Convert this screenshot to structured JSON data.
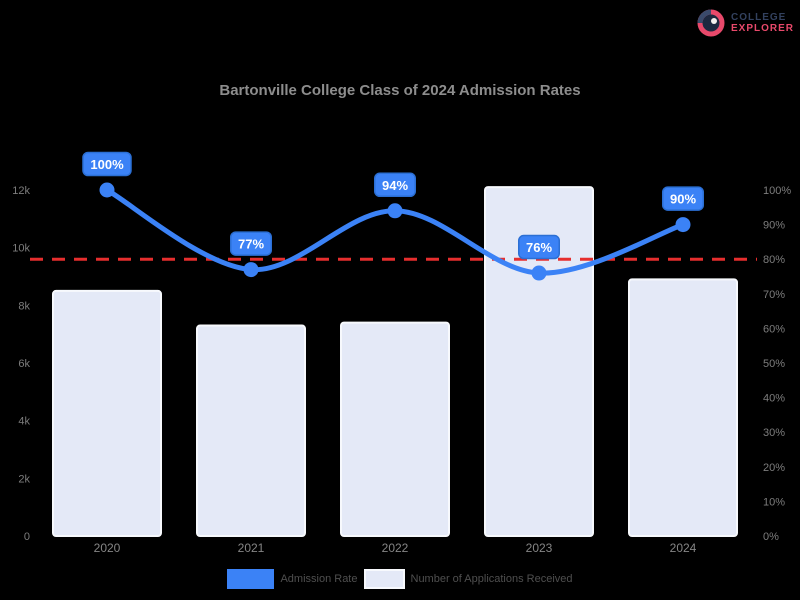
{
  "page": {
    "background": "#000000"
  },
  "logo": {
    "icon": "ring-logo-icon",
    "line1": "COLLEGE",
    "line2": "EXPLORER",
    "line1_color": "#33415e",
    "line2_color": "#e8496b"
  },
  "title": "Bartonville College Class of 2024 Admission Rates",
  "chart_data": {
    "type": "bar+line combo",
    "title": "Bartonville College Class of 2024 Admission Rates",
    "categories": [
      "2020",
      "2021",
      "2022",
      "2023",
      "2024"
    ],
    "series": [
      {
        "name": "Number of Applications Received",
        "type": "bar",
        "axis": "left",
        "values": [
          8500,
          7300,
          7400,
          12100,
          8900
        ],
        "fill": "#e4e9f7",
        "border": "#f7f9fd"
      },
      {
        "name": "Admission Rate",
        "type": "line",
        "axis": "right",
        "values": [
          100,
          77,
          94,
          76,
          90
        ],
        "unit": "%",
        "color": "#3b82f6",
        "point_labels": [
          "100%",
          "77%",
          "94%",
          "76%",
          "90%"
        ]
      }
    ],
    "reference_line": {
      "axis": "right",
      "value": 80,
      "color": "#e62e2e",
      "style": "dashed"
    },
    "left_axis": {
      "min": 0,
      "max": 12000,
      "tick_labels": [
        "12k",
        "10k",
        "8k",
        "6k",
        "4k",
        "2k",
        "0"
      ]
    },
    "right_axis": {
      "min": 0,
      "max": 100,
      "tick_labels": [
        "100%",
        "90%",
        "80%",
        "70%",
        "60%",
        "50%",
        "40%",
        "30%",
        "20%",
        "10%",
        "0%"
      ]
    },
    "grid": false,
    "legend_position": "bottom",
    "legend": [
      {
        "label": "Admission Rate",
        "swatch_color": "#3b82f6"
      },
      {
        "label": "Number of Applications Received",
        "swatch_color": "#e4e9f7"
      }
    ]
  },
  "colors": {
    "accent_blue": "#3b82f6",
    "label_box_border": "#2b6fd4",
    "reference_red": "#e62e2e",
    "bar_fill": "#e4e9f7",
    "bar_border": "#f7f9fd",
    "axis_text": "#7d7d7d",
    "category_text": "#858585",
    "title_text": "#8d8d8d",
    "legend_text": "#4f4f4f"
  }
}
